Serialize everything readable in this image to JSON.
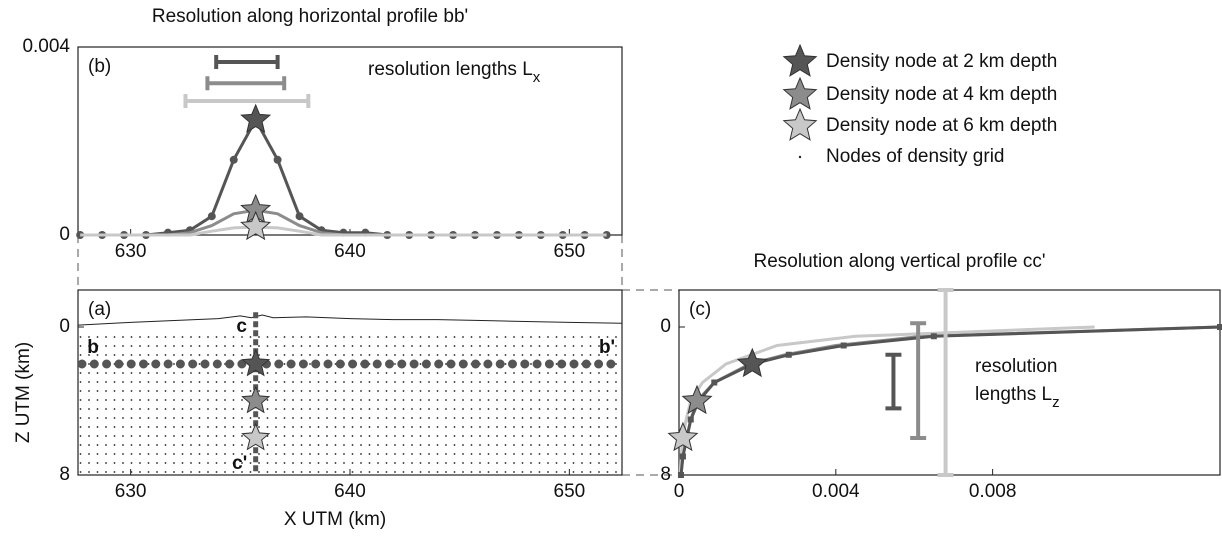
{
  "chart_data": [
    {
      "type": "line",
      "panel": "(b)",
      "title": "Resolution along horizontal profile bb'",
      "xlim": [
        627.6,
        652.4
      ],
      "xticks": [
        630,
        640,
        650
      ],
      "ylim": [
        0,
        0.004
      ],
      "yticks": [
        0,
        0.004
      ],
      "x": [
        627.7,
        628.7,
        629.7,
        630.7,
        631.7,
        632.7,
        633.7,
        634.7,
        635.7,
        636.7,
        637.7,
        638.7,
        639.7,
        640.7,
        641.7,
        642.7,
        643.7,
        644.7,
        645.7,
        646.7,
        647.7,
        648.7,
        649.7,
        650.7,
        651.7
      ],
      "series": [
        {
          "name": "Density node at 2 km depth",
          "color": "#555555",
          "marker": "circle",
          "values": [
            0,
            0,
            0,
            0,
            5e-05,
            0.0001,
            0.0004,
            0.0016,
            0.00245,
            0.0016,
            0.0004,
            0.0001,
            5e-05,
            5e-05,
            0,
            0,
            0,
            0,
            0,
            0,
            0,
            0,
            0,
            0,
            0
          ]
        },
        {
          "name": "Density node at 4 km depth",
          "color": "#8c8c8c",
          "values": [
            0,
            0,
            0,
            0,
            0,
            5e-05,
            0.0002,
            0.00045,
            0.00053,
            0.00045,
            0.0002,
            5e-05,
            0,
            0,
            0,
            0,
            0,
            0,
            0,
            0,
            0,
            0,
            0,
            0,
            0
          ]
        },
        {
          "name": "Density node at 6 km depth",
          "color": "#c8c8c8",
          "values": [
            0,
            0,
            0,
            0,
            0,
            0,
            8e-05,
            0.00015,
            0.00017,
            0.00015,
            8e-05,
            0,
            0,
            0,
            0,
            0,
            0,
            0,
            0,
            0,
            0,
            0,
            0,
            0,
            0
          ]
        }
      ],
      "bar_direction": "horizontal",
      "resolution_bars": [
        {
          "color": "#555555",
          "from": 633.9,
          "to": 636.7,
          "at": 0.00368
        },
        {
          "color": "#8c8c8c",
          "from": 633.5,
          "to": 637.0,
          "at": 0.00323
        },
        {
          "color": "#c8c8c8",
          "from": 632.5,
          "to": 638.1,
          "at": 0.00285
        }
      ],
      "annotation": {
        "lines": [
          "resolution lengths L"
        ],
        "subscript": "x"
      }
    },
    {
      "type": "section",
      "panel": "(a)",
      "xlabel": "X UTM (km)",
      "ylabel": "Z UTM (km)",
      "xlim": [
        627.6,
        652.4
      ],
      "xticks": [
        630,
        640,
        650
      ],
      "ylim": [
        -2,
        8
      ],
      "y_inverted": true,
      "yticks": [
        0,
        8
      ],
      "topography": {
        "x": [
          627.6,
          630,
          632,
          634,
          635,
          635.5,
          636,
          636.5,
          638,
          640,
          642,
          644,
          646,
          648,
          650,
          652.4
        ],
        "z": [
          -0.1,
          -0.25,
          -0.35,
          -0.45,
          -0.6,
          -0.5,
          -0.65,
          -0.5,
          -0.55,
          -0.45,
          -0.4,
          -0.4,
          -0.35,
          -0.3,
          -0.25,
          -0.2
        ]
      },
      "profile_bb": {
        "z": 2,
        "labels": [
          "b",
          "b'"
        ]
      },
      "profile_cc": {
        "x": 635.7,
        "labels": [
          "c",
          "c'"
        ]
      },
      "nodes": [
        {
          "x": 635.7,
          "z": 2,
          "color": "#555555"
        },
        {
          "x": 635.7,
          "z": 4,
          "color": "#8c8c8c"
        },
        {
          "x": 635.7,
          "z": 6,
          "color": "#c8c8c8"
        }
      ],
      "grid_nodes_label": "Nodes of density grid"
    },
    {
      "type": "line",
      "panel": "(c)",
      "title": "Resolution along vertical profile cc'",
      "xlim": [
        0,
        0.0138
      ],
      "xticks": [
        0,
        0.004,
        0.008
      ],
      "ylim": [
        -2,
        8
      ],
      "y_inverted": true,
      "yticks": [
        0,
        8
      ],
      "series": [
        {
          "color": "#8c8c8c",
          "star": [
            0.00046,
            4
          ],
          "x": [
            5e-05,
            0.0001,
            0.0002,
            0.0003,
            0.00046,
            0.0009,
            0.0018,
            0.0027,
            0.004,
            0.0062,
            0.0138
          ],
          "values": [
            8,
            7,
            6,
            5,
            4,
            3,
            2,
            1.5,
            1,
            0.5,
            0
          ]
        },
        {
          "color": "#c8c8c8",
          "star": [
            0.0001,
            6
          ],
          "x": [
            3e-05,
            5e-05,
            0.0001,
            0.00018,
            0.0003,
            0.0006,
            0.0012,
            0.0025,
            0.0045,
            0.0106
          ],
          "values": [
            8,
            7,
            6,
            5,
            4,
            3,
            2,
            1,
            0.5,
            0
          ]
        },
        {
          "color": "#555555",
          "marker": "square",
          "star": [
            0.00187,
            2
          ],
          "x": [
            5e-05,
            0.0001,
            0.0002,
            0.0003,
            0.0005,
            0.0009,
            0.00187,
            0.0028,
            0.0042,
            0.0065,
            0.0138
          ],
          "values": [
            8,
            7,
            6,
            5,
            4,
            3,
            2,
            1.5,
            1,
            0.5,
            0
          ]
        }
      ],
      "bar_direction": "vertical",
      "resolution_bars": [
        {
          "color": "#555555",
          "from": 1.5,
          "to": 4.4,
          "at": 0.00547
        },
        {
          "color": "#8c8c8c",
          "from": -0.2,
          "to": 6,
          "at": 0.0061
        },
        {
          "color": "#c8c8c8",
          "from": -2,
          "to": 8,
          "at": 0.0068
        }
      ],
      "annotation": {
        "lines": [
          "resolution",
          "lengths L"
        ],
        "subscript": "z"
      }
    }
  ]
}
